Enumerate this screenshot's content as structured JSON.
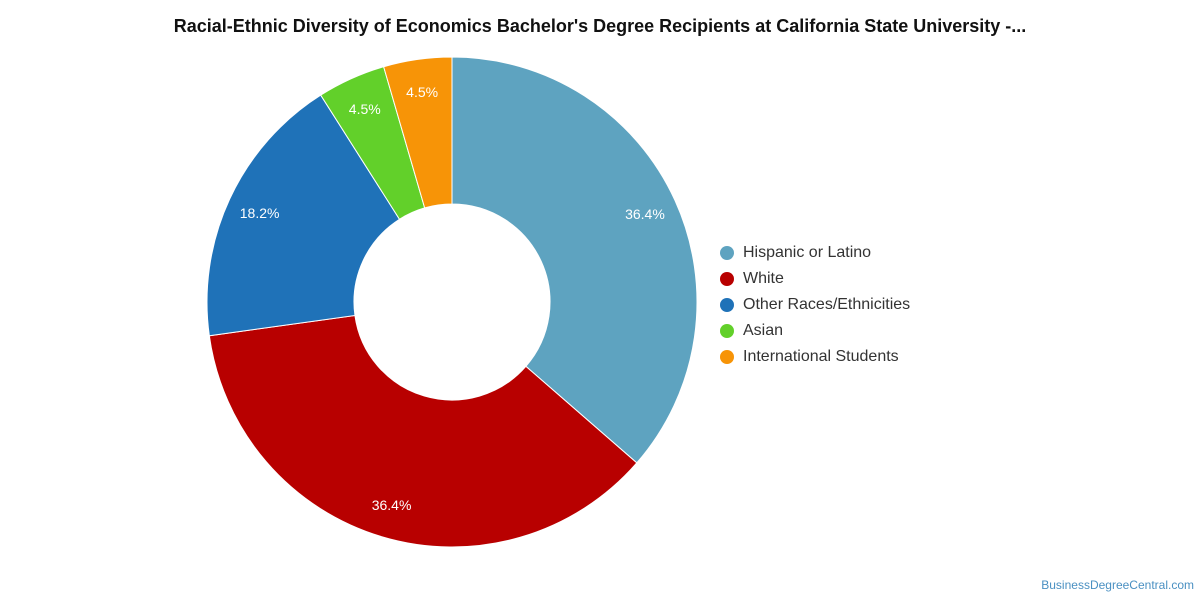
{
  "chart_data": {
    "type": "donut",
    "title": "Racial-Ethnic Diversity of Economics Bachelor's Degree Recipients at California State University -...",
    "categories": [
      "Hispanic or Latino",
      "White",
      "Other Races/Ethnicities",
      "Asian",
      "International Students"
    ],
    "values": [
      36.4,
      36.4,
      18.2,
      4.5,
      4.5
    ],
    "data_labels": [
      "36.4%",
      "36.4%",
      "18.2%",
      "4.5%",
      "4.5%"
    ],
    "colors": [
      "#5ea3c0",
      "#b80000",
      "#1f72b8",
      "#62d02a",
      "#f79407"
    ],
    "legend_position": "right"
  },
  "watermark": "BusinessDegreeCentral.com"
}
